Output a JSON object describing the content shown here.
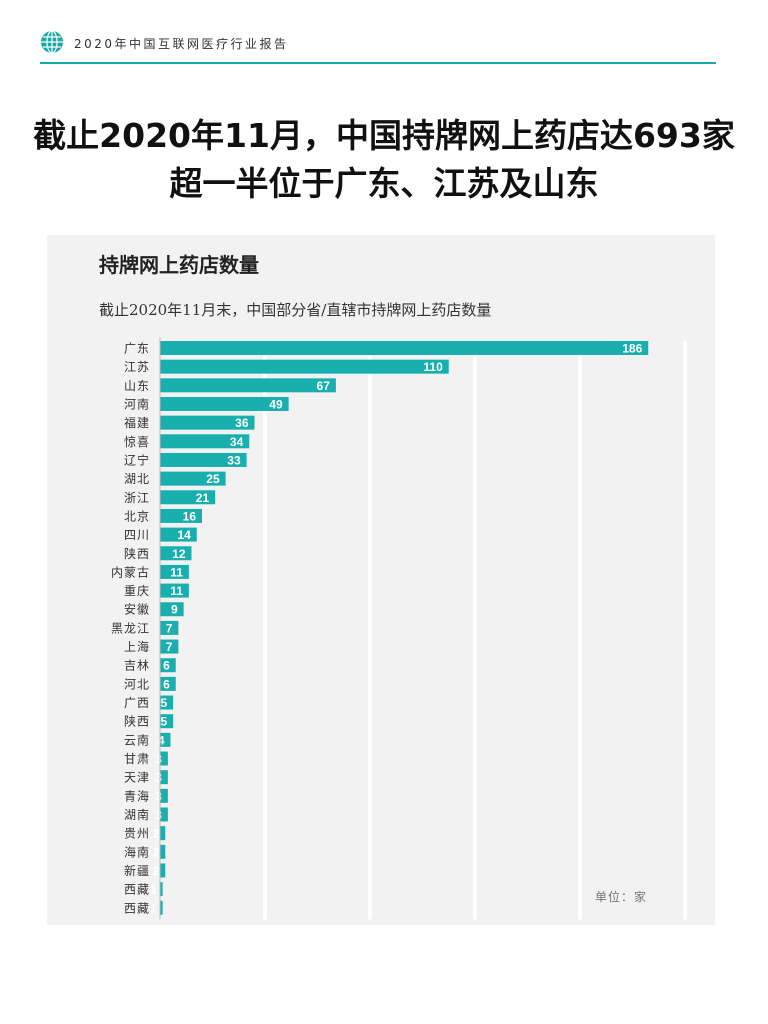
{
  "header": {
    "report_title": "2020年中国互联网医疗行业报告"
  },
  "headline": {
    "line1": "截止2020年11月，中国持牌网上药店达693家",
    "line2": "超一半位于广东、江苏及山东"
  },
  "panel": {
    "title": "持牌网上药店数量",
    "subtitle": "截止2020年11月末，中国部分省/直辖市持牌网上药店数量",
    "unit_label": "单位：家"
  },
  "colors": {
    "bar": "#1aafaf",
    "accent_rule": "#1aa9a9",
    "panel_bg": "#f2f2f2",
    "gridline": "#ffffff"
  },
  "chart_data": {
    "type": "bar",
    "orientation": "horizontal",
    "categories": [
      "广东",
      "江苏",
      "山东",
      "河南",
      "福建",
      "惊喜",
      "辽宁",
      "湖北",
      "浙江",
      "北京",
      "四川",
      "陕西",
      "内蒙古",
      "重庆",
      "安徽",
      "黑龙江",
      "上海",
      "吉林",
      "河北",
      "广西",
      "陕西",
      "云南",
      "甘肃",
      "天津",
      "青海",
      "湖南",
      "贵州",
      "海南",
      "新疆",
      "西藏",
      "西藏"
    ],
    "values": [
      186,
      110,
      67,
      49,
      36,
      34,
      33,
      25,
      21,
      16,
      14,
      12,
      11,
      11,
      9,
      7,
      7,
      6,
      6,
      5,
      5,
      4,
      3,
      3,
      3,
      3,
      2,
      2,
      2,
      1,
      1
    ],
    "xlim": [
      0,
      200
    ],
    "grid": true,
    "title": "持牌网上药店数量",
    "subtitle": "截止2020年11月末，中国部分省/直辖市持牌网上药店数量"
  }
}
